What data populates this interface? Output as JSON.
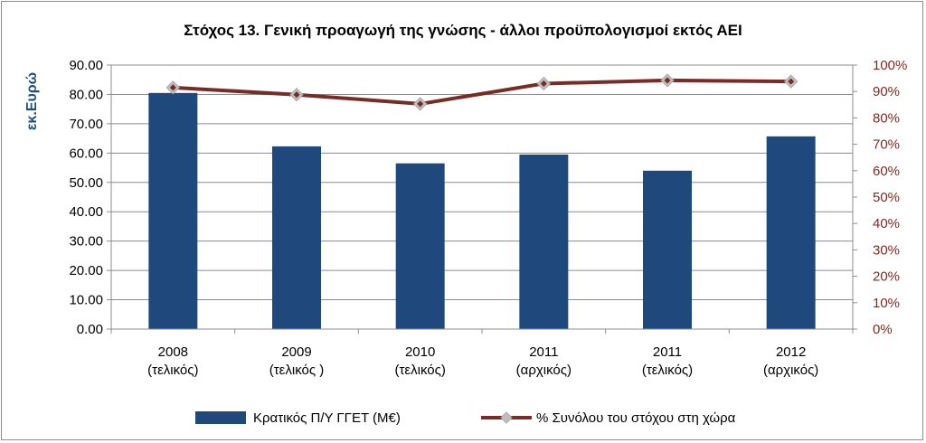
{
  "chart_data": {
    "type": "bar+line",
    "title": "Στόχος 13. Γενική προαγωγή της γνώσης - άλλοι προϋπολογισμοί εκτός ΑΕΙ",
    "ylabel": "εκ.Ευρώ",
    "categories": [
      [
        "2008",
        "(τελικός)"
      ],
      [
        "2009",
        "(τελικός )"
      ],
      [
        "2010",
        "(τελικός)"
      ],
      [
        "2011",
        "(αρχικός)"
      ],
      [
        "2011",
        "(τελικός)"
      ],
      [
        "2012",
        "(αρχικός)"
      ]
    ],
    "ylim": [
      0,
      90
    ],
    "yticks": [
      "0.00",
      "10.00",
      "20.00",
      "30.00",
      "40.00",
      "50.00",
      "60.00",
      "70.00",
      "80.00",
      "90.00"
    ],
    "y2lim": [
      0,
      100
    ],
    "y2ticks": [
      "0%",
      "10%",
      "20%",
      "30%",
      "40%",
      "50%",
      "60%",
      "70%",
      "80%",
      "90%",
      "100%"
    ],
    "grid": true,
    "legend_position": "bottom",
    "series": [
      {
        "name": "Κρατικός Π/Υ ΓΓΕΤ (Μ€)",
        "type": "bar",
        "axis": "left",
        "color": "#1f497d",
        "values": [
          80.5,
          62.3,
          56.5,
          59.5,
          54.0,
          65.7
        ]
      },
      {
        "name": "% Συνόλου του στόχου στη χώρα",
        "type": "line",
        "axis": "right",
        "color": "#772c26",
        "marker_color": "#c0c0c0",
        "values": [
          91.5,
          88.8,
          85.3,
          93.0,
          94.2,
          93.8
        ]
      }
    ]
  }
}
